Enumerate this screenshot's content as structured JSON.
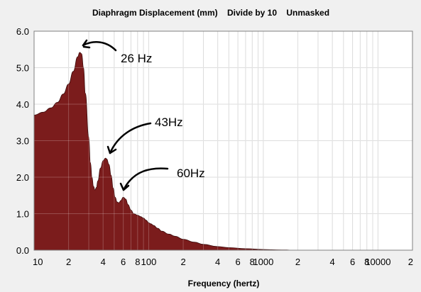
{
  "chart_data": {
    "type": "area",
    "title": "Diaphragm Displacement (mm)    Divide by 10    Unmasked",
    "xlabel": "Frequency (hertz)",
    "ylabel": "",
    "x_scale": "log",
    "xlim": [
      10,
      20000
    ],
    "ylim": [
      0,
      6
    ],
    "grid": true,
    "fill_color": "#7b1c1c",
    "y_ticks": [
      "0.0",
      "1.0",
      "2.0",
      "3.0",
      "4.0",
      "5.0",
      "6.0"
    ],
    "x_ticks": [
      {
        "x": 10,
        "label": "10"
      },
      {
        "x": 20,
        "label": "2"
      },
      {
        "x": 40,
        "label": "4"
      },
      {
        "x": 60,
        "label": "6"
      },
      {
        "x": 80,
        "label": "8"
      },
      {
        "x": 100,
        "label": "100"
      },
      {
        "x": 200,
        "label": "2"
      },
      {
        "x": 400,
        "label": "4"
      },
      {
        "x": 600,
        "label": "6"
      },
      {
        "x": 800,
        "label": "8"
      },
      {
        "x": 1000,
        "label": "1000"
      },
      {
        "x": 2000,
        "label": "2"
      },
      {
        "x": 4000,
        "label": "4"
      },
      {
        "x": 6000,
        "label": "6"
      },
      {
        "x": 8000,
        "label": "8"
      },
      {
        "x": 10000,
        "label": "10000"
      },
      {
        "x": 20000,
        "label": "2"
      }
    ],
    "series": [
      {
        "x": [
          10,
          12,
          14,
          16,
          18,
          20,
          22,
          24,
          25,
          26,
          27,
          28,
          30,
          31,
          32,
          33,
          34,
          35,
          36,
          38,
          40,
          42,
          43,
          45,
          47,
          49,
          51,
          53,
          55,
          57,
          60,
          63,
          66,
          70,
          74,
          80,
          85,
          90,
          95,
          100,
          105,
          110,
          120,
          130,
          150,
          170,
          200,
          250,
          300,
          400,
          500,
          700,
          1000,
          1300,
          1600,
          1800,
          2000,
          20000
        ],
        "y": [
          3.7,
          3.78,
          3.9,
          4.05,
          4.28,
          4.55,
          4.9,
          5.3,
          5.42,
          5.38,
          5.0,
          4.3,
          3.1,
          2.4,
          2.0,
          1.75,
          1.65,
          1.72,
          1.9,
          2.25,
          2.45,
          2.52,
          2.5,
          2.35,
          2.05,
          1.7,
          1.45,
          1.32,
          1.3,
          1.36,
          1.45,
          1.4,
          1.25,
          1.1,
          1.0,
          0.96,
          0.92,
          0.88,
          0.82,
          0.75,
          0.72,
          0.68,
          0.6,
          0.52,
          0.44,
          0.38,
          0.3,
          0.22,
          0.16,
          0.1,
          0.07,
          0.04,
          0.02,
          0.01,
          0.005,
          0.0,
          0.0,
          0.0
        ]
      }
    ],
    "annotations": [
      {
        "text": "26 Hz",
        "x": 26,
        "y": 5.42
      },
      {
        "text": "43Hz",
        "x": 43,
        "y": 2.52
      },
      {
        "text": "60Hz",
        "x": 57,
        "y": 1.55
      }
    ]
  }
}
